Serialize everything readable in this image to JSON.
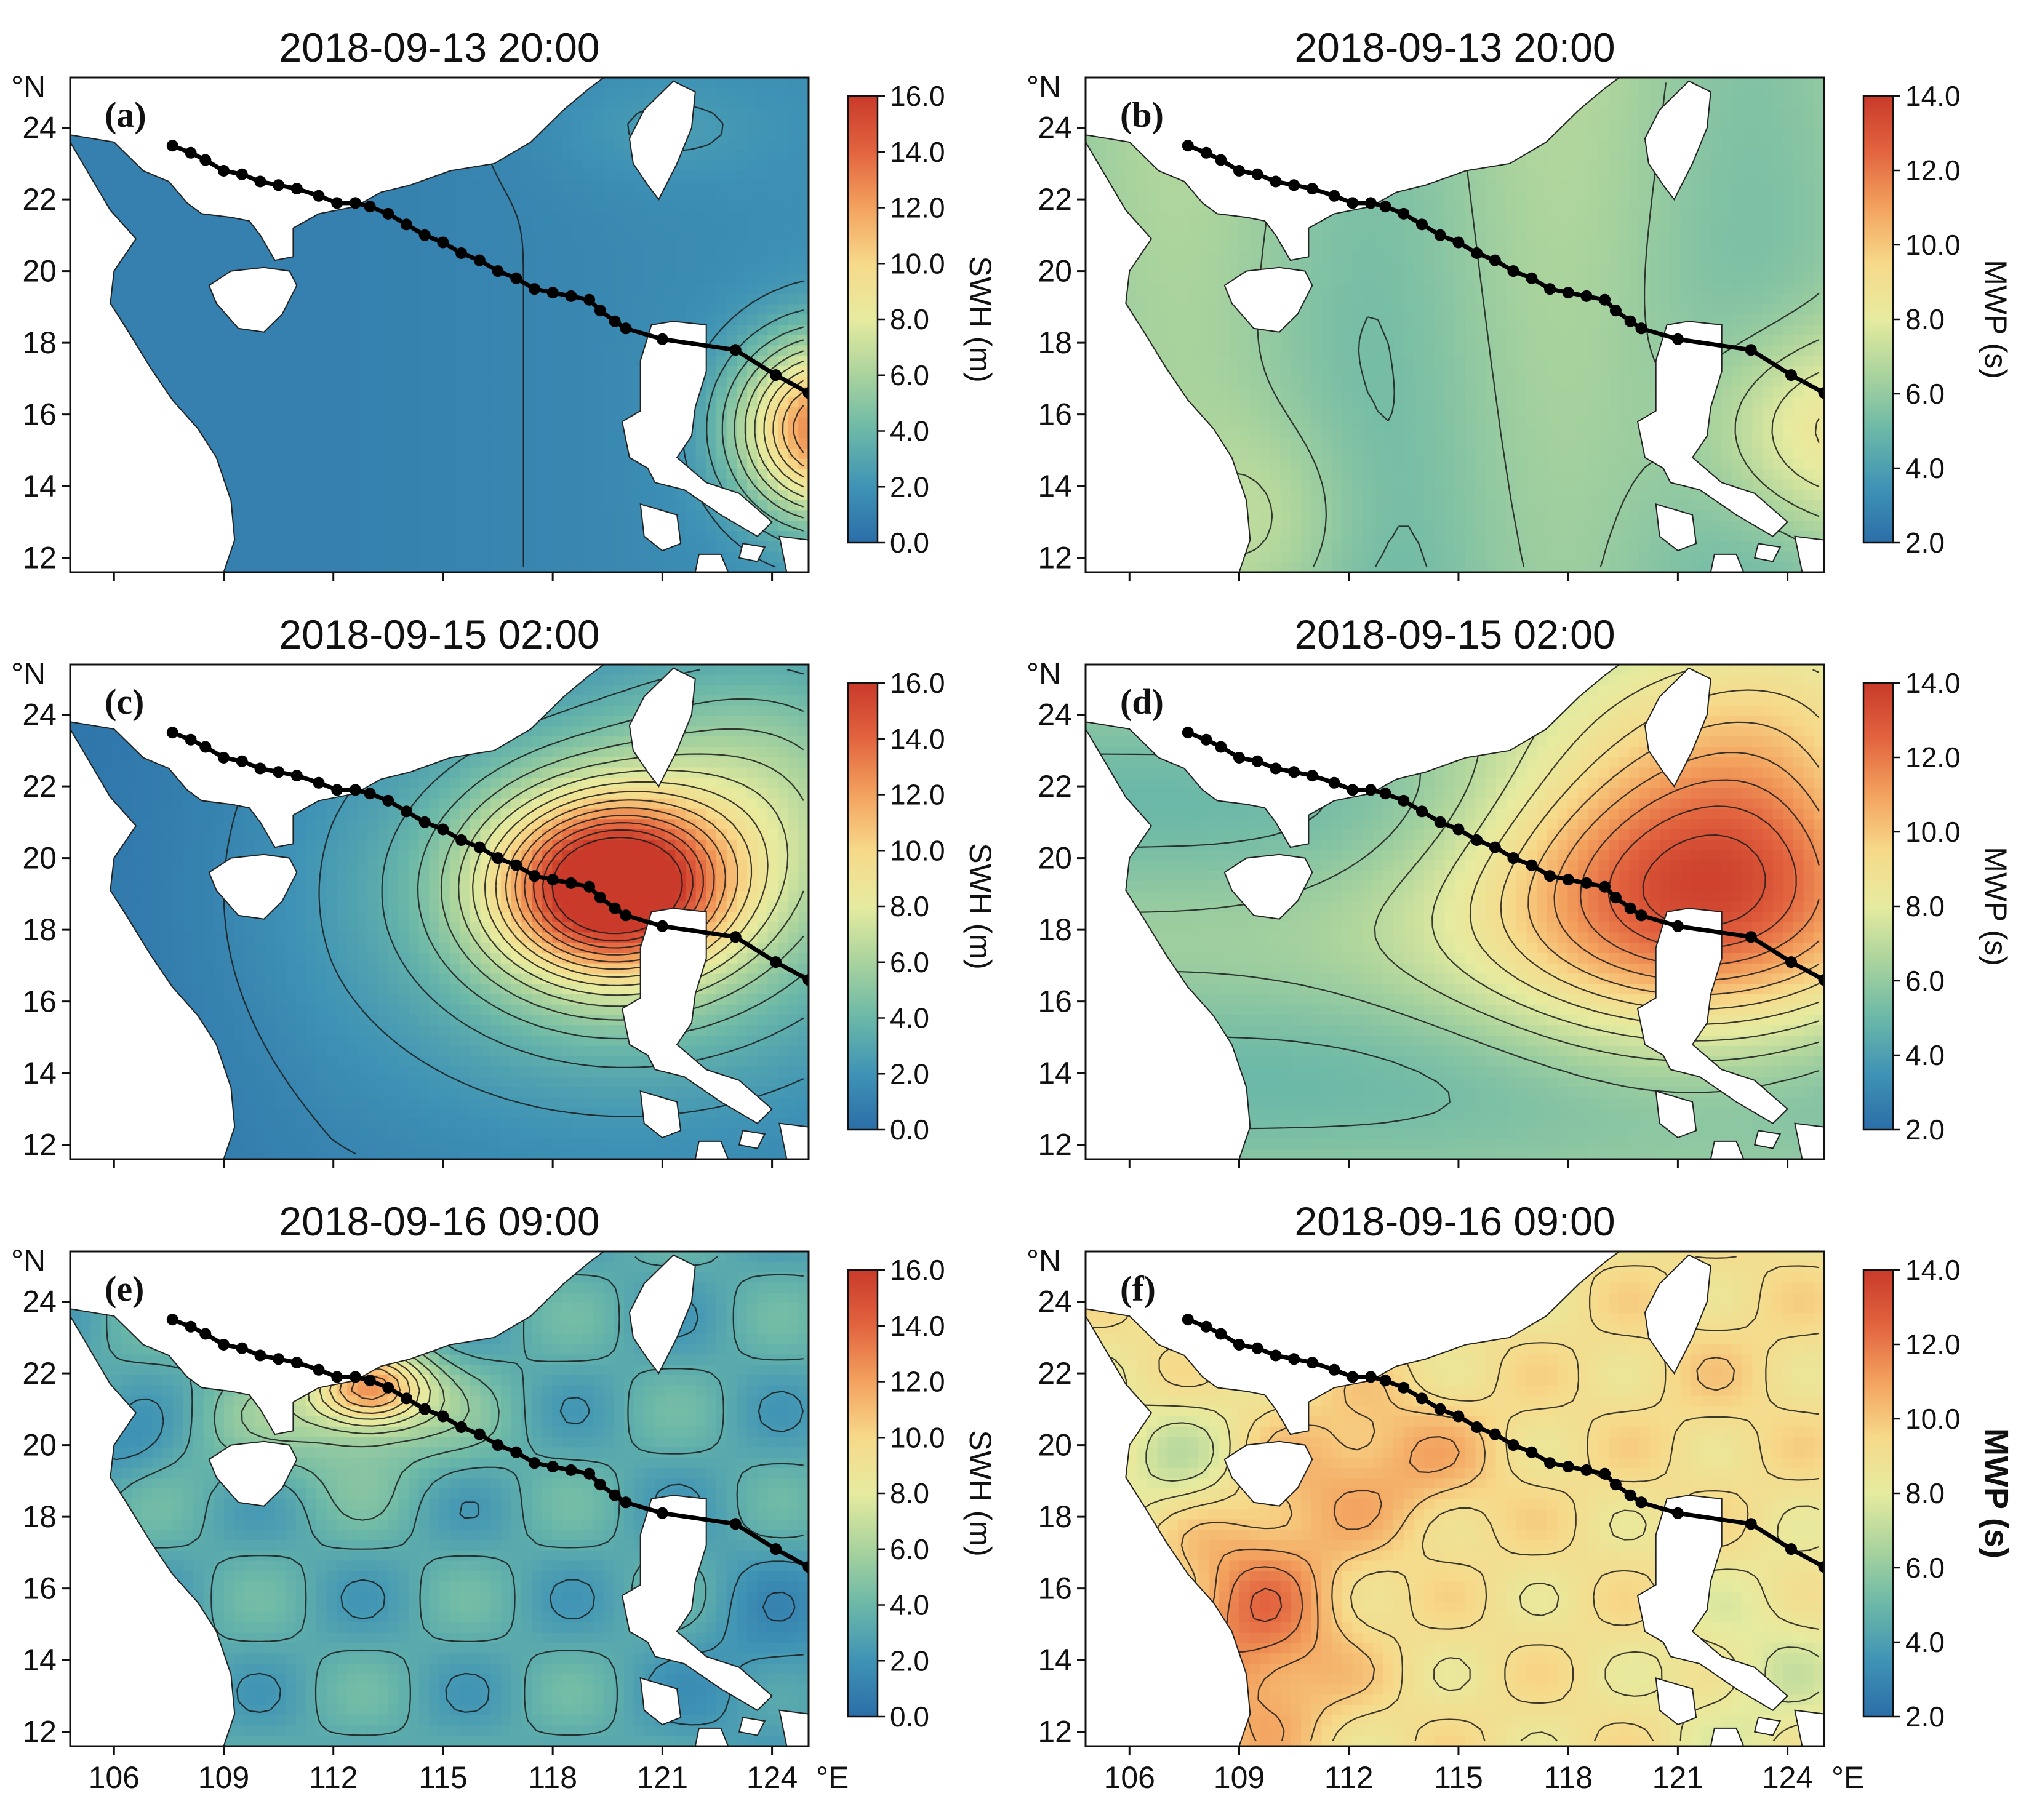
{
  "figure": {
    "panels": [
      {
        "id": "a",
        "label": "(a)",
        "title": "2018-09-13 20:00",
        "variable": "SWH (m)",
        "field": "swh_a"
      },
      {
        "id": "b",
        "label": "(b)",
        "title": "2018-09-13 20:00",
        "variable": "MWP (s)",
        "field": "mwp_b"
      },
      {
        "id": "c",
        "label": "(c)",
        "title": "2018-09-15 02:00",
        "variable": "SWH (m)",
        "field": "swh_c"
      },
      {
        "id": "d",
        "label": "(d)",
        "title": "2018-09-15 02:00",
        "variable": "MWP (s)",
        "field": "mwp_d"
      },
      {
        "id": "e",
        "label": "(e)",
        "title": "2018-09-16 09:00",
        "variable": "SWH (m)",
        "field": "swh_e"
      },
      {
        "id": "f",
        "label": "(f)",
        "title": "2018-09-16 09:00",
        "variable": "MWP (s)",
        "field": "mwp_f"
      }
    ],
    "lat_ticks": [
      "24",
      "22",
      "20",
      "18",
      "16",
      "14",
      "12"
    ],
    "lat_unit": "°N",
    "lon_ticks": [
      "106",
      "109",
      "112",
      "115",
      "118",
      "121",
      "124"
    ],
    "lon_unit": "°E",
    "colorbar_swh": {
      "ticks": [
        "16.0",
        "14.0",
        "12.0",
        "10.0",
        "8.0",
        "6.0",
        "4.0",
        "2.0",
        "0.0"
      ],
      "min": 0,
      "max": 16
    },
    "colorbar_mwp": {
      "ticks": [
        "14.0",
        "12.0",
        "10.0",
        "8.0",
        "6.0",
        "4.0",
        "2.0"
      ],
      "min": 2,
      "max": 14
    },
    "colormap": [
      "#2b6ea8",
      "#3f93b5",
      "#6bb8a8",
      "#a9d39d",
      "#e6eb9f",
      "#f7d98a",
      "#f3a25e",
      "#e2643f",
      "#c93a2a"
    ],
    "land_color": "#ffffff",
    "track_color": "#000000",
    "typhoon_track": [
      {
        "lon": 107.6,
        "lat": 23.5
      },
      {
        "lon": 108.1,
        "lat": 23.3
      },
      {
        "lon": 108.5,
        "lat": 23.1
      },
      {
        "lon": 109.0,
        "lat": 22.8
      },
      {
        "lon": 109.5,
        "lat": 22.7
      },
      {
        "lon": 110.0,
        "lat": 22.5
      },
      {
        "lon": 110.5,
        "lat": 22.4
      },
      {
        "lon": 111.0,
        "lat": 22.3
      },
      {
        "lon": 111.6,
        "lat": 22.1
      },
      {
        "lon": 112.1,
        "lat": 21.9
      },
      {
        "lon": 112.6,
        "lat": 21.9
      },
      {
        "lon": 113.0,
        "lat": 21.8
      },
      {
        "lon": 113.5,
        "lat": 21.6
      },
      {
        "lon": 114.0,
        "lat": 21.3
      },
      {
        "lon": 114.5,
        "lat": 21.0
      },
      {
        "lon": 115.0,
        "lat": 20.8
      },
      {
        "lon": 115.5,
        "lat": 20.5
      },
      {
        "lon": 116.0,
        "lat": 20.3
      },
      {
        "lon": 116.5,
        "lat": 20.0
      },
      {
        "lon": 117.0,
        "lat": 19.8
      },
      {
        "lon": 117.5,
        "lat": 19.5
      },
      {
        "lon": 118.0,
        "lat": 19.4
      },
      {
        "lon": 118.5,
        "lat": 19.3
      },
      {
        "lon": 119.0,
        "lat": 19.2
      },
      {
        "lon": 119.3,
        "lat": 18.9
      },
      {
        "lon": 119.7,
        "lat": 18.6
      },
      {
        "lon": 120.0,
        "lat": 18.4
      },
      {
        "lon": 121.0,
        "lat": 18.1
      },
      {
        "lon": 123.0,
        "lat": 17.8
      },
      {
        "lon": 124.1,
        "lat": 17.1
      },
      {
        "lon": 125.0,
        "lat": 16.6
      }
    ]
  }
}
